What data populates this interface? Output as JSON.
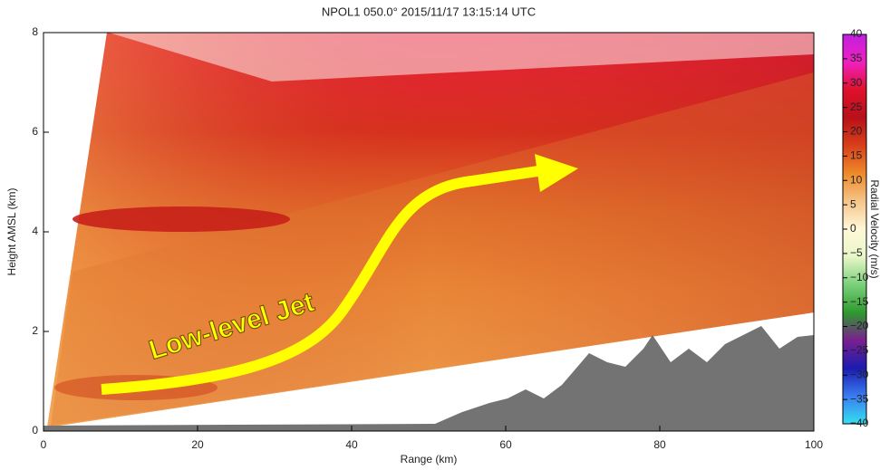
{
  "chart_data": {
    "type": "rhi",
    "title": "NPOL1 050.0° 2015/11/17 13:15:14 UTC",
    "x_label": "Range (km)",
    "y_label": "Height AMSL (km)",
    "xlim": [
      0,
      100
    ],
    "xticks": [
      0,
      20,
      40,
      60,
      80,
      100
    ],
    "ylim": [
      0,
      8
    ],
    "yticks": [
      0,
      2,
      4,
      6,
      8
    ],
    "colorbar_label": "Radial Velocity (m/s)",
    "clim": [
      -40,
      40
    ],
    "colorbar_ticks": [
      40,
      35,
      30,
      25,
      20,
      15,
      10,
      5,
      0,
      {
        "value": -5,
        "label": "−5"
      },
      {
        "value": -10,
        "label": "−10"
      },
      {
        "value": -15,
        "label": "−15"
      },
      {
        "value": -20,
        "label": "−20"
      },
      {
        "value": -25,
        "label": "−25"
      },
      {
        "value": -30,
        "label": "−30"
      },
      {
        "value": -35,
        "label": "−35"
      },
      {
        "value": -40,
        "label": "−40"
      }
    ],
    "colormap": [
      "#34e0f0",
      "#3a7cf0",
      "#1b1bb0",
      "#7a1f8f",
      "#2e9a2e",
      "#7ad07a",
      "#e8f6c8",
      "#fff8d8",
      "#f5c58a",
      "#ee8a2a",
      "#d8401a",
      "#b8101a",
      "#e0102a",
      "#f020c0",
      "#c020e0"
    ],
    "annotation": "Low-level Jet"
  }
}
